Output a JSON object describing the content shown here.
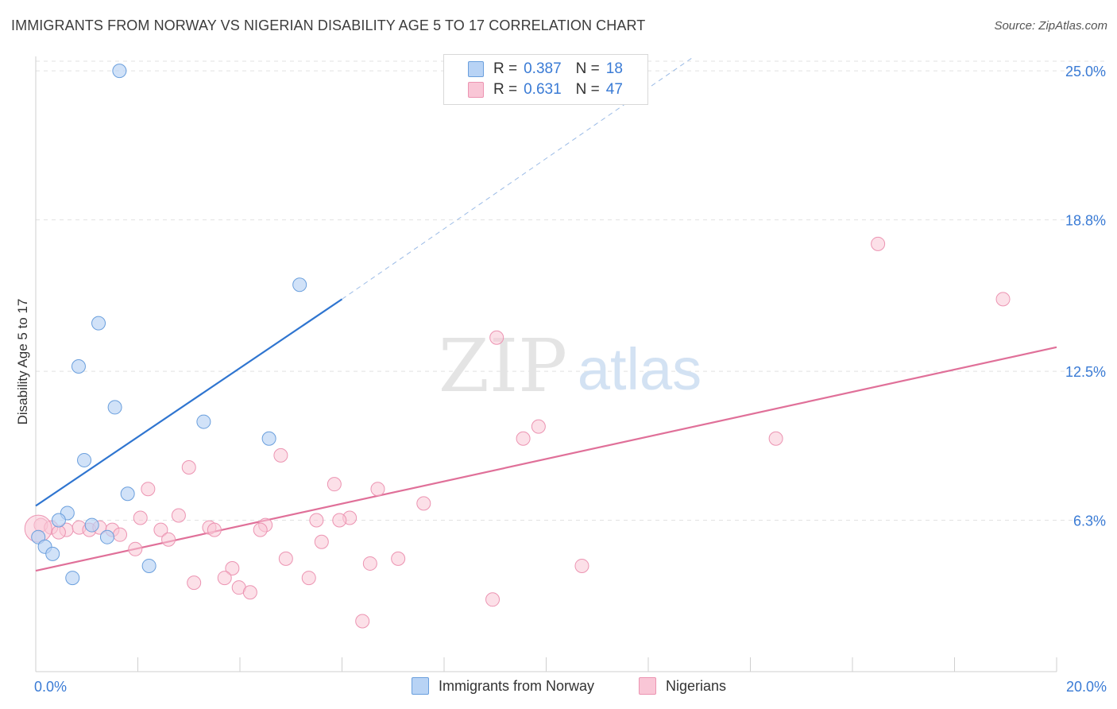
{
  "title": "IMMIGRANTS FROM NORWAY VS NIGERIAN DISABILITY AGE 5 TO 17 CORRELATION CHART",
  "source": "Source: ZipAtlas.com",
  "watermark": {
    "zip": "ZIP",
    "atlas": "atlas"
  },
  "legend": {
    "norway": {
      "r_label": "R =",
      "r_value": "0.387",
      "n_label": "N =",
      "n_value": "18"
    },
    "nigerian": {
      "r_label": "R =",
      "r_value": "0.631",
      "n_label": "N =",
      "n_value": "47"
    }
  },
  "colors": {
    "norway_fill": "#b8d3f5",
    "norway_stroke": "#6a9fdd",
    "norway_line": "#2f75d0",
    "nigerian_fill": "#f9c6d6",
    "nigerian_stroke": "#ec94b2",
    "nigerian_line": "#e07099",
    "tick_label": "#3a7bd5",
    "grid": "#e2e2e2"
  },
  "chart_data": {
    "type": "scatter",
    "title": "IMMIGRANTS FROM NORWAY VS NIGERIAN DISABILITY AGE 5 TO 17 CORRELATION CHART",
    "xlabel": "",
    "ylabel": "Disability Age 5 to 17",
    "xlim": [
      0,
      20
    ],
    "ylim": [
      0,
      25.6
    ],
    "x_tick_labels": [
      {
        "value": 0,
        "label": "0.0%"
      },
      {
        "value": 20,
        "label": "20.0%"
      }
    ],
    "y_tick_labels": [
      {
        "value": 6.3,
        "label": "6.3%"
      },
      {
        "value": 12.5,
        "label": "12.5%"
      },
      {
        "value": 18.8,
        "label": "18.8%"
      },
      {
        "value": 25.0,
        "label": "25.0%"
      }
    ],
    "series": [
      {
        "name": "Immigrants from Norway",
        "points": [
          [
            1.64,
            25.0
          ],
          [
            5.17,
            16.1
          ],
          [
            1.23,
            14.5
          ],
          [
            0.84,
            12.7
          ],
          [
            1.55,
            11.0
          ],
          [
            3.29,
            10.4
          ],
          [
            4.57,
            9.7
          ],
          [
            0.95,
            8.8
          ],
          [
            1.8,
            7.4
          ],
          [
            0.62,
            6.6
          ],
          [
            0.45,
            6.3
          ],
          [
            1.1,
            6.1
          ],
          [
            1.4,
            5.6
          ],
          [
            0.05,
            5.6
          ],
          [
            0.18,
            5.2
          ],
          [
            0.33,
            4.9
          ],
          [
            2.22,
            4.4
          ],
          [
            0.72,
            3.9
          ]
        ],
        "trend": {
          "x": [
            0,
            6.0
          ],
          "y": [
            6.9,
            15.5
          ]
        },
        "trend_extension": {
          "x": [
            6.0,
            12.9
          ],
          "y": [
            15.5,
            25.6
          ]
        }
      },
      {
        "name": "Nigerians",
        "points": [
          [
            16.5,
            17.8
          ],
          [
            18.95,
            15.5
          ],
          [
            9.03,
            13.9
          ],
          [
            9.85,
            10.2
          ],
          [
            9.55,
            9.7
          ],
          [
            14.5,
            9.7
          ],
          [
            4.8,
            9.0
          ],
          [
            3.0,
            8.5
          ],
          [
            5.85,
            7.8
          ],
          [
            6.7,
            7.6
          ],
          [
            2.2,
            7.6
          ],
          [
            7.6,
            7.0
          ],
          [
            2.8,
            6.5
          ],
          [
            2.05,
            6.4
          ],
          [
            5.5,
            6.3
          ],
          [
            6.15,
            6.4
          ],
          [
            0.1,
            6.1
          ],
          [
            0.3,
            6.0
          ],
          [
            0.6,
            5.9
          ],
          [
            0.85,
            6.0
          ],
          [
            1.05,
            5.9
          ],
          [
            1.5,
            5.9
          ],
          [
            3.4,
            6.0
          ],
          [
            4.5,
            6.1
          ],
          [
            4.4,
            5.9
          ],
          [
            1.25,
            6.0
          ],
          [
            3.5,
            5.9
          ],
          [
            2.45,
            5.9
          ],
          [
            5.95,
            6.3
          ],
          [
            0.45,
            5.8
          ],
          [
            1.65,
            5.7
          ],
          [
            2.6,
            5.5
          ],
          [
            5.6,
            5.4
          ],
          [
            1.95,
            5.1
          ],
          [
            4.9,
            4.7
          ],
          [
            6.55,
            4.5
          ],
          [
            7.1,
            4.7
          ],
          [
            3.85,
            4.3
          ],
          [
            10.7,
            4.4
          ],
          [
            3.7,
            3.9
          ],
          [
            5.35,
            3.9
          ],
          [
            3.1,
            3.7
          ],
          [
            3.98,
            3.5
          ],
          [
            4.2,
            3.3
          ],
          [
            8.95,
            3.0
          ],
          [
            6.4,
            2.1
          ],
          [
            0.05,
            5.95
          ]
        ],
        "trend": {
          "x": [
            0,
            20
          ],
          "y": [
            4.2,
            13.5
          ]
        }
      }
    ],
    "legend": [
      "Immigrants from Norway",
      "Nigerians"
    ],
    "legend_position": "top-center"
  }
}
